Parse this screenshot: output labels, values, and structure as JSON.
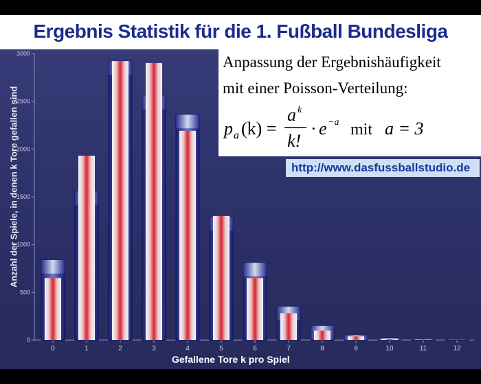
{
  "title": "Ergebnis Statistik für die 1. Fußball Bundesliga",
  "info": {
    "line1": "Anpassung der Ergebnishäufigkeit",
    "line2": "mit einer Poisson-Verteilung:",
    "formula_lhs": "p",
    "formula_sub": "a",
    "formula_arg": "(k) =",
    "formula_num": "a",
    "formula_num_exp": "k",
    "formula_den": "k!",
    "formula_dot": "·",
    "formula_e": "e",
    "formula_e_exp": "−a",
    "formula_mit": "mit",
    "formula_a": "a = 3"
  },
  "url": "http://www.dasfussballstudio.de",
  "colors": {
    "title": "#1a2c8c",
    "background": "#2b2f66",
    "observed_bar": "#e4eaf2",
    "observed_bar_stripe": "#e0303c",
    "poisson_bar": "#1e2480",
    "url_box": "#cfe0f4"
  },
  "chart_data": {
    "type": "bar",
    "xlabel": "Gefallene Tore  k  pro Spiel",
    "ylabel": "Anzahl der Spiele, in denen  k  Tore gefallen sind",
    "categories": [
      "0",
      "1",
      "2",
      "3",
      "4",
      "5",
      "6",
      "7",
      "8",
      "9",
      "10",
      "11",
      "12"
    ],
    "ylim": [
      0,
      3000
    ],
    "yticks": [
      "0",
      "500",
      "1000",
      "1500",
      "2000",
      "2500",
      "3000"
    ],
    "series": [
      {
        "values": [
          650,
          1930,
          2920,
          2900,
          2190,
          1300,
          650,
          280,
          100,
          40,
          15,
          5,
          2
        ]
      },
      {
        "values": [
          840,
          1560,
          2920,
          2560,
          2360,
          1290,
          810,
          350,
          150,
          50,
          20,
          8,
          3
        ]
      }
    ],
    "grid": false
  }
}
